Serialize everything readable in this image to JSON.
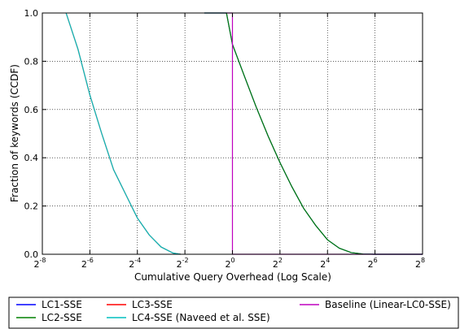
{
  "chart_data": {
    "type": "line",
    "xlabel": "Cumulative Query Overhead (Log Scale)",
    "ylabel": "Fraction of keywords (CCDF)",
    "x_scale": "log2",
    "xlim_exponents": [
      -8,
      8
    ],
    "x_ticks": [
      {
        "base": "2",
        "exp": "-8"
      },
      {
        "base": "2",
        "exp": "-6"
      },
      {
        "base": "2",
        "exp": "-4"
      },
      {
        "base": "2",
        "exp": "-2"
      },
      {
        "base": "2",
        "exp": "0"
      },
      {
        "base": "2",
        "exp": "2"
      },
      {
        "base": "2",
        "exp": "4"
      },
      {
        "base": "2",
        "exp": "6"
      },
      {
        "base": "2",
        "exp": "8"
      }
    ],
    "ylim": [
      0.0,
      1.0
    ],
    "y_ticks": [
      "0.0",
      "0.2",
      "0.4",
      "0.6",
      "0.8",
      "1.0"
    ],
    "grid": true,
    "legend_position": "below",
    "series": [
      {
        "name": "LC1-SSE",
        "color": "#0000ff",
        "x": [
          0.44,
          0.84,
          1.0,
          1.41,
          2,
          2.83,
          4,
          5.66,
          8,
          11.31,
          16,
          22.63,
          32,
          45.25,
          64,
          256
        ],
        "y": [
          1.0,
          1.0,
          0.87,
          0.74,
          0.61,
          0.49,
          0.38,
          0.28,
          0.19,
          0.12,
          0.06,
          0.025,
          0.007,
          0.001,
          0.0,
          0.0
        ]
      },
      {
        "name": "LC2-SSE",
        "color": "#008000",
        "x": [
          0.44,
          0.84,
          1.0,
          1.41,
          2,
          2.83,
          4,
          5.66,
          8,
          11.31,
          16,
          22.63,
          32,
          45.25,
          64,
          256
        ],
        "y": [
          1.0,
          1.0,
          0.87,
          0.74,
          0.61,
          0.49,
          0.38,
          0.28,
          0.19,
          0.12,
          0.06,
          0.025,
          0.007,
          0.001,
          0.0,
          0.0
        ]
      },
      {
        "name": "LC3-SSE",
        "color": "#ff0000",
        "x": [
          0.0078125,
          0.0110485,
          0.015625,
          0.0220971,
          0.03125,
          0.0441942,
          0.0625,
          0.0883883,
          0.125,
          0.1767767,
          0.221
        ],
        "y": [
          1.0,
          0.85,
          0.66,
          0.5,
          0.35,
          0.25,
          0.15,
          0.08,
          0.03,
          0.005,
          0.0
        ]
      },
      {
        "name": "LC4-SSE (Naveed et al. SSE)",
        "color": "#00bfbf",
        "x": [
          0.0078125,
          0.0110485,
          0.015625,
          0.0220971,
          0.03125,
          0.0441942,
          0.0625,
          0.0883883,
          0.125,
          0.1767767,
          0.221
        ],
        "y": [
          1.0,
          0.85,
          0.66,
          0.5,
          0.35,
          0.25,
          0.15,
          0.08,
          0.03,
          0.005,
          0.0
        ]
      },
      {
        "name": "Baseline (Linear-LC0-SSE)",
        "color": "#bf00bf",
        "x": [
          0.84,
          1.0,
          1.0,
          256
        ],
        "y": [
          1.0,
          1.0,
          0.0,
          0.0
        ]
      }
    ]
  }
}
